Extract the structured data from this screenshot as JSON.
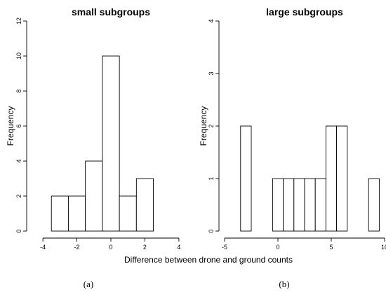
{
  "chart_data": [
    {
      "type": "bar",
      "title": "small subgroups",
      "xlabel": "",
      "ylabel": "Frequency",
      "bin_edges": [
        -3.5,
        -2.5,
        -1.5,
        -0.5,
        0.5,
        1.5,
        2.5
      ],
      "values": [
        2,
        2,
        4,
        10,
        2,
        3
      ],
      "xlim": [
        -4.5,
        4.5
      ],
      "ylim": [
        0,
        12
      ],
      "xticks": [
        -4,
        -2,
        0,
        2,
        4
      ],
      "yticks": [
        0,
        2,
        4,
        6,
        8,
        10,
        12
      ],
      "grid": false,
      "panel_label": "(a)"
    },
    {
      "type": "bar",
      "title": "large subgroups",
      "xlabel": "",
      "ylabel": "Frequency",
      "bin_edges": [
        -3.5,
        -2.5,
        -1.5,
        -0.5,
        0.5,
        1.5,
        2.5,
        3.5,
        4.5,
        5.5,
        6.5,
        7.5,
        8.5,
        9.5
      ],
      "values": [
        2,
        0,
        0,
        1,
        1,
        1,
        1,
        1,
        2,
        2,
        0,
        0,
        1
      ],
      "xlim": [
        -5,
        10
      ],
      "ylim": [
        0,
        4
      ],
      "xticks": [
        -5,
        0,
        5,
        10
      ],
      "yticks": [
        0,
        1,
        2,
        3,
        4
      ],
      "grid": false,
      "panel_label": "(b)"
    }
  ],
  "shared_xlabel": "Difference between drone and ground counts"
}
